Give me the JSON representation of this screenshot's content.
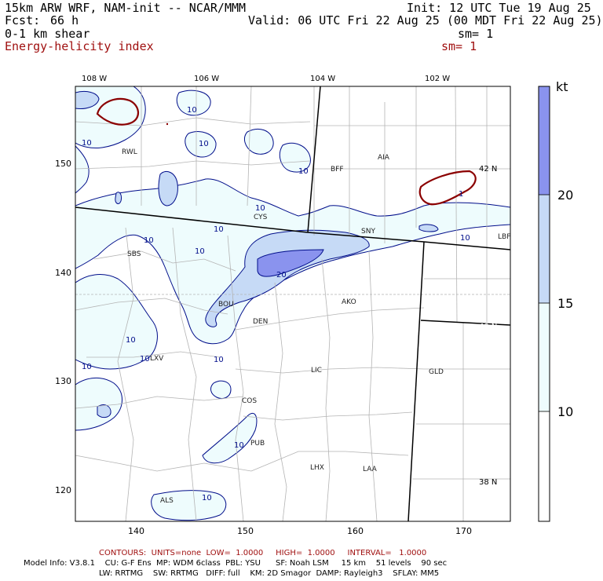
{
  "header": {
    "model_title": "15km ARW WRF, NAM-init -- NCAR/MMM",
    "init": "Init: 12 UTC Tue 19 Aug 25",
    "fcst_label": "Fcst:",
    "fcst_value": "66 h",
    "valid": "Valid: 06 UTC Fri 22 Aug 25 (00 MDT Fri 22 Aug 25)",
    "field1_name": "0-1 km shear",
    "field1_sm": "sm= 1",
    "field2_name": "Energy-helicity index",
    "field2_sm": "sm= 1"
  },
  "map": {
    "lon_labels": [
      "108 W",
      "106 W",
      "104 W",
      "102 W"
    ],
    "lat_labels": [
      "42 N",
      "40 N",
      "38 N"
    ],
    "x_ticks": [
      "140",
      "150",
      "160",
      "170"
    ],
    "y_ticks": [
      "150",
      "140",
      "130",
      "120"
    ],
    "cities": [
      "RWL",
      "BFF",
      "AIA",
      "CYS",
      "SNY",
      "LBF",
      "SBS",
      "BOU",
      "DEN",
      "AKO",
      "LXV",
      "LIC",
      "GLD",
      "COS",
      "PUB",
      "LHX",
      "LAA",
      "ALS"
    ],
    "contour_labels": [
      "10",
      "10",
      "10",
      "10",
      "10",
      "10",
      "10",
      "10",
      "10",
      "10",
      "20",
      "10",
      "10",
      "10",
      "10",
      "10",
      "1"
    ],
    "colors": {
      "fill_10": "#eefcfd",
      "fill_15": "#c6daf6",
      "fill_20": "#8a93ee",
      "contour": "#000d8a",
      "ehi_contour": "#8b0000",
      "border": "#000000",
      "county": "#b4b4b4"
    }
  },
  "colorbar": {
    "unit": "kt",
    "labels": [
      "20",
      "15",
      "10"
    ]
  },
  "footer": {
    "contours": "CONTOURS:  UNITS=none  LOW=  1.0000     HIGH=  1.0000     INTERVAL=   1.0000",
    "model_info_1": "Model Info: V3.8.1    CU: G-F Ens  MP: WDM 6class  PBL: YSU      SF: Noah LSM     15 km    51 levels    90 sec",
    "model_info_2": "LW: RRTMG    SW: RRTMG   DIFF: full    KM: 2D Smagor  DAMP: Rayleigh3    SFLAY: MM5"
  }
}
